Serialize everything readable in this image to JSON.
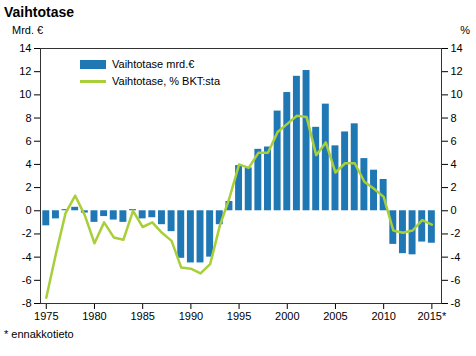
{
  "chart_data": {
    "type": "bar",
    "title": "Vaihtotase",
    "x": [
      1975,
      1976,
      1977,
      1978,
      1979,
      1980,
      1981,
      1982,
      1983,
      1984,
      1985,
      1986,
      1987,
      1988,
      1989,
      1990,
      1991,
      1992,
      1993,
      1994,
      1995,
      1996,
      1997,
      1998,
      1999,
      2000,
      2001,
      2002,
      2003,
      2004,
      2005,
      2006,
      2007,
      2008,
      2009,
      2010,
      2011,
      2012,
      2013,
      2014,
      2015
    ],
    "series": [
      {
        "name": "Vaihtotase mrd.€",
        "type": "bar",
        "color": "#1f78b4",
        "values": [
          -1.3,
          -0.7,
          0.1,
          0.3,
          -0.2,
          -1.0,
          -0.5,
          -0.8,
          -1.0,
          0.1,
          -0.7,
          -0.6,
          -1.2,
          -1.8,
          -4.1,
          -4.5,
          -4.5,
          -4.0,
          -1.2,
          0.8,
          3.9,
          3.7,
          5.3,
          5.5,
          8.6,
          10.2,
          11.6,
          12.1,
          7.2,
          9.2,
          5.6,
          6.8,
          7.5,
          4.5,
          3.5,
          2.7,
          -2.9,
          -3.7,
          -3.8,
          -2.7,
          -2.8
        ]
      },
      {
        "name": "Vaihtotase, % BKT:sta",
        "type": "line",
        "axis": "y2",
        "color": "#a8cf3a",
        "values": [
          -7.5,
          -3.7,
          -0.2,
          1.3,
          -0.4,
          -2.8,
          -1.0,
          -2.3,
          -2.5,
          0.0,
          -1.4,
          -1.0,
          -1.9,
          -2.6,
          -4.9,
          -5.0,
          -5.4,
          -4.6,
          -1.3,
          1.1,
          4.0,
          3.7,
          5.0,
          5.0,
          6.8,
          7.5,
          8.2,
          8.1,
          4.8,
          5.9,
          3.3,
          4.1,
          4.1,
          2.5,
          1.9,
          1.2,
          -1.7,
          -1.9,
          -1.7,
          -0.8,
          -1.2
        ]
      }
    ],
    "ylabel": "Mrd. €",
    "y2label": "%",
    "xlim": [
      1974.4,
      2016
    ],
    "xticks": [
      1975,
      1980,
      1985,
      1990,
      1995,
      2000,
      2005,
      2010,
      {
        "value": 2015,
        "label": "2015*"
      }
    ],
    "ylim": [
      -8,
      14
    ],
    "yticks": [
      -8,
      -6,
      -4,
      -2,
      0,
      2,
      4,
      6,
      8,
      10,
      12,
      14
    ],
    "y2lim": [
      -8,
      14
    ],
    "y2ticks": [
      -8,
      -6,
      -4,
      -2,
      0,
      2,
      4,
      6,
      8,
      10,
      12,
      14
    ],
    "grid": false,
    "legend": "upper left",
    "caption": "* ennakkotieto"
  }
}
